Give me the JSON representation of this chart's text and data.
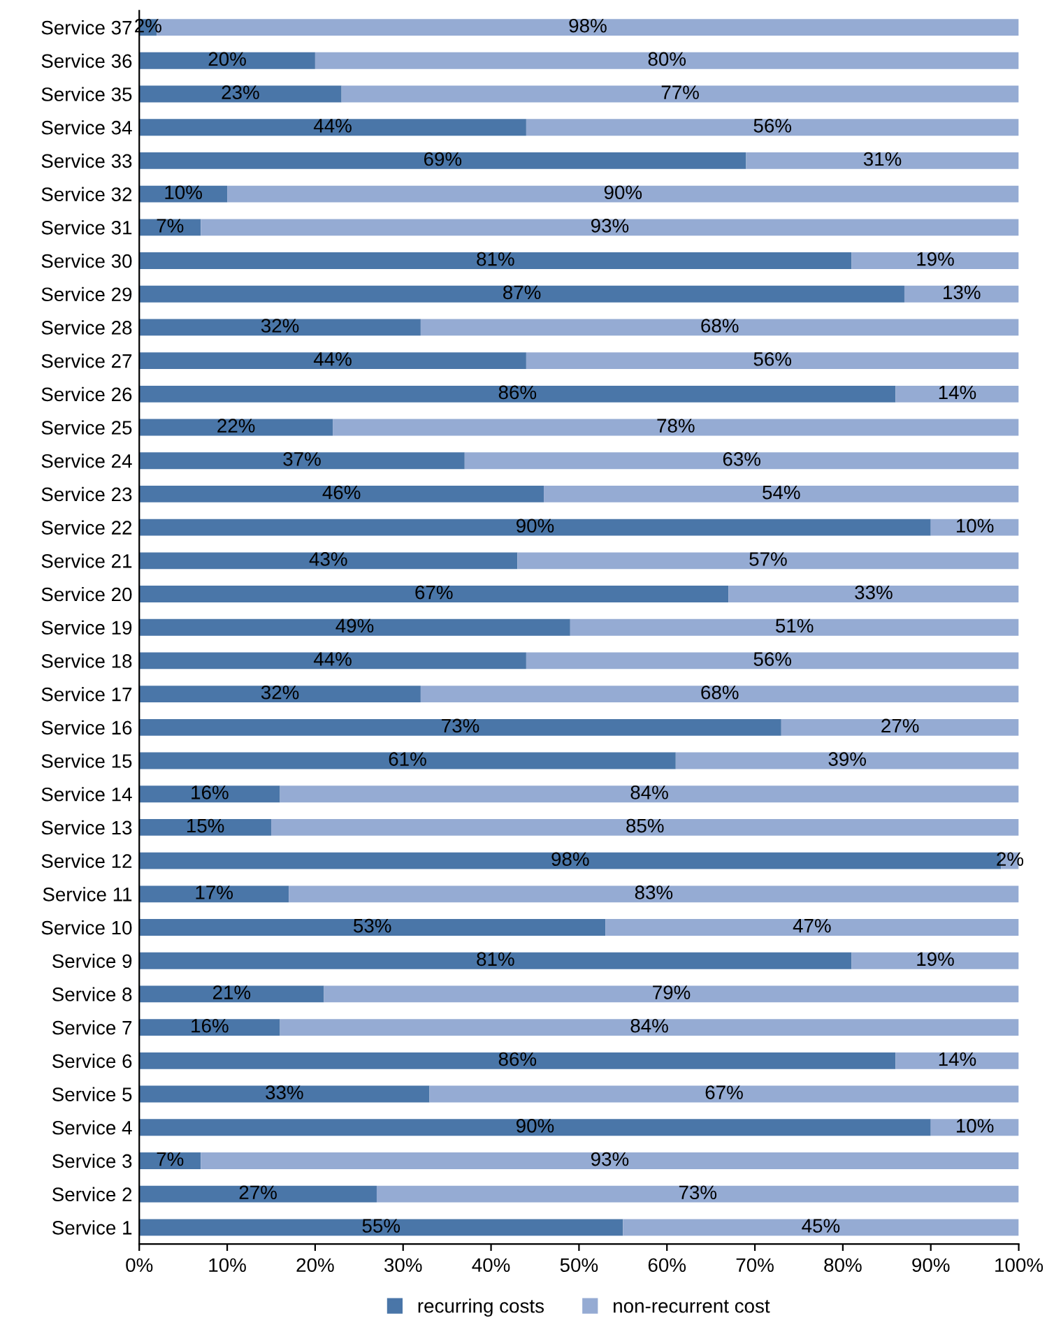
{
  "chart_data": {
    "type": "bar",
    "orientation": "horizontal",
    "stacked": true,
    "categories": [
      "Service 37",
      "Service 36",
      "Service 35",
      "Service 34",
      "Service 33",
      "Service 32",
      "Service 31",
      "Service 30",
      "Service 29",
      "Service 28",
      "Service 27",
      "Service 26",
      "Service 25",
      "Service 24",
      "Service 23",
      "Service 22",
      "Service 21",
      "Service 20",
      "Service 19",
      "Service 18",
      "Service 17",
      "Service 16",
      "Service 15",
      "Service 14",
      "Service 13",
      "Service 12",
      "Service 11",
      "Service 10",
      "Service 9",
      "Service 8",
      "Service 7",
      "Service 6",
      "Service 5",
      "Service 4",
      "Service 3",
      "Service 2",
      "Service 1"
    ],
    "series": [
      {
        "name": "recurring costs",
        "color": "#4a76a8",
        "values": [
          2,
          20,
          23,
          44,
          69,
          10,
          7,
          81,
          87,
          32,
          44,
          86,
          22,
          37,
          46,
          90,
          43,
          67,
          49,
          44,
          32,
          73,
          61,
          16,
          15,
          98,
          17,
          53,
          81,
          21,
          16,
          86,
          33,
          90,
          7,
          27,
          55
        ],
        "value_labels": [
          "2%",
          "20%",
          "23%",
          "44%",
          "69%",
          "10%",
          "7%",
          "81%",
          "87%",
          "32%",
          "44%",
          "86%",
          "22%",
          "37%",
          "46%",
          "90%",
          "43%",
          "67%",
          "49%",
          "44%",
          "32%",
          "73%",
          "61%",
          "16%",
          "15%",
          "98%",
          "17%",
          "53%",
          "81%",
          "21%",
          "16%",
          "86%",
          "33%",
          "90%",
          "7%",
          "27%",
          "55%"
        ]
      },
      {
        "name": "non-recurrent cost",
        "color": "#95abd3",
        "values": [
          98,
          80,
          77,
          56,
          31,
          90,
          93,
          19,
          13,
          68,
          56,
          14,
          78,
          63,
          54,
          10,
          57,
          33,
          51,
          56,
          68,
          27,
          39,
          84,
          85,
          2,
          83,
          47,
          19,
          79,
          84,
          14,
          67,
          10,
          93,
          73,
          45
        ],
        "value_labels": [
          "98%",
          "80%",
          "77%",
          "56%",
          "31%",
          "90%",
          "93%",
          "19%",
          "13%",
          "68%",
          "56%",
          "14%",
          "78%",
          "63%",
          "54%",
          "10%",
          "57%",
          "33%",
          "51%",
          "56%",
          "68%",
          "27%",
          "39%",
          "84%",
          "85%",
          "2%",
          "83%",
          "47%",
          "19%",
          "79%",
          "84%",
          "14%",
          "67%",
          "10%",
          "93%",
          "73%",
          "45%"
        ]
      }
    ],
    "xlim": [
      0,
      100
    ],
    "xticks": [
      {
        "value": 0,
        "label": "0%"
      },
      {
        "value": 10,
        "label": "10%"
      },
      {
        "value": 20,
        "label": "20%"
      },
      {
        "value": 30,
        "label": "30%"
      },
      {
        "value": 40,
        "label": "40%"
      },
      {
        "value": 50,
        "label": "50%"
      },
      {
        "value": 60,
        "label": "60%"
      },
      {
        "value": 70,
        "label": "70%"
      },
      {
        "value": 80,
        "label": "80%"
      },
      {
        "value": 90,
        "label": "90%"
      },
      {
        "value": 100,
        "label": "100%"
      }
    ],
    "legend": "bottom"
  }
}
